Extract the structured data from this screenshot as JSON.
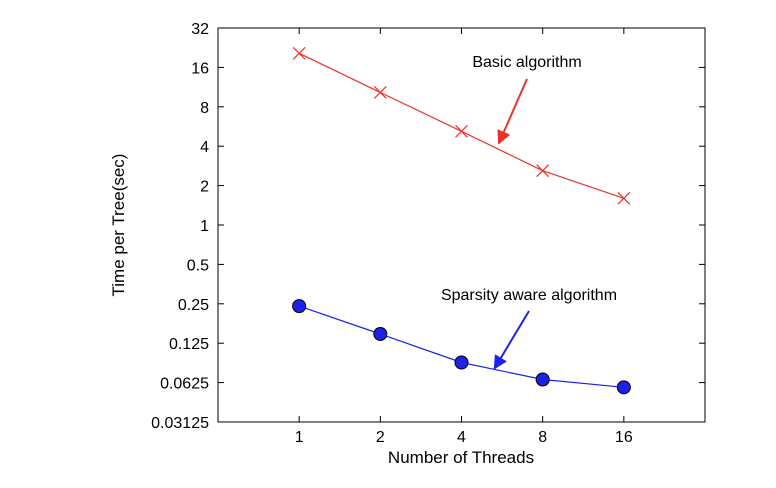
{
  "chart_data": {
    "type": "line",
    "xlabel": "Number of Threads",
    "ylabel": "Time per Tree(sec)",
    "x_scale": "log2",
    "y_scale": "log2",
    "xlim": [
      0.5,
      32
    ],
    "ylim": [
      0.03125,
      32
    ],
    "x_ticks": [
      1,
      2,
      4,
      8,
      16
    ],
    "x_tick_labels": [
      "1",
      "2",
      "4",
      "8",
      "16"
    ],
    "y_ticks": [
      0.03125,
      0.0625,
      0.125,
      0.25,
      0.5,
      1,
      2,
      4,
      8,
      16,
      32
    ],
    "y_tick_labels": [
      "0.03125",
      "0.0625",
      "0.125",
      "0.25",
      "0.5",
      "1",
      "2",
      "4",
      "8",
      "16",
      "32"
    ],
    "grid": false,
    "legend": "none",
    "x": [
      1,
      2,
      4,
      8,
      16
    ],
    "series": [
      {
        "name": "Basic algorithm",
        "color": "#e8332a",
        "marker": "x",
        "values": [
          20.5,
          10.3,
          5.2,
          2.6,
          1.6
        ]
      },
      {
        "name": "Sparsity aware algorithm",
        "color": "#1c22e6",
        "marker": "circle",
        "values": [
          0.24,
          0.147,
          0.089,
          0.066,
          0.0575
        ]
      }
    ],
    "annotations": [
      {
        "text": "Basic algorithm",
        "series": 0,
        "arrow_to": [
          5.5,
          4.2
        ]
      },
      {
        "text": "Sparsity aware algorithm",
        "series": 1,
        "arrow_to": [
          5.3,
          0.08
        ]
      }
    ]
  }
}
